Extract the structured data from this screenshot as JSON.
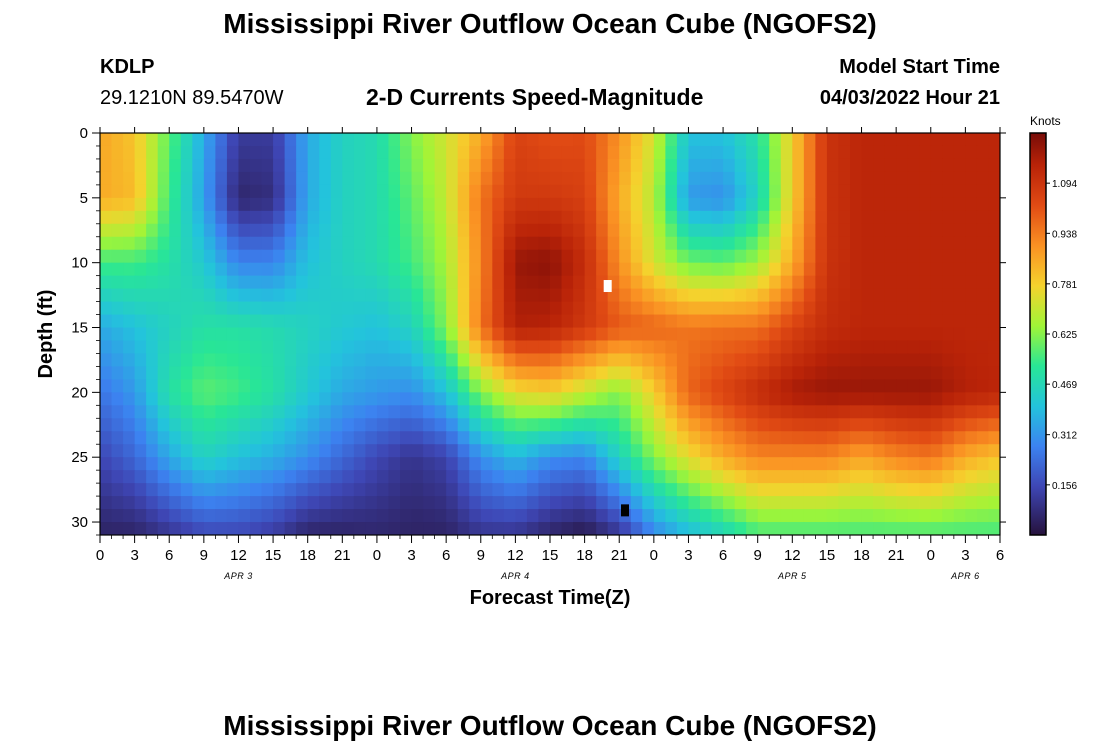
{
  "page": {
    "title": "Mississippi River Outflow Ocean Cube (NGOFS2)",
    "title_repeat": "Mississippi River Outflow Ocean Cube (NGOFS2)"
  },
  "header": {
    "station": "KDLP",
    "coords": "29.1210N  89.5470W",
    "subtitle": "2-D Currents Speed-Magnitude",
    "model_label": "Model Start Time",
    "model_time": "04/03/2022 Hour 21"
  },
  "chart_data": {
    "type": "heatmap",
    "title": "2-D Currents Speed-Magnitude",
    "xlabel": "Forecast Time(Z)",
    "ylabel": "Depth (ft)",
    "x_ticks": [
      "0",
      "3",
      "6",
      "9",
      "12",
      "15",
      "18",
      "21",
      "0",
      "3",
      "6",
      "9",
      "12",
      "15",
      "18",
      "21",
      "0",
      "3",
      "6",
      "9",
      "12",
      "15",
      "18",
      "21",
      "0",
      "3",
      "6"
    ],
    "x_range_hours": [
      0,
      78
    ],
    "date_labels": [
      {
        "label": "APR 3",
        "hour": 12
      },
      {
        "label": "APR 4",
        "hour": 36
      },
      {
        "label": "APR 5",
        "hour": 60
      },
      {
        "label": "APR 6",
        "hour": 75
      }
    ],
    "y_ticks": [
      0,
      5,
      10,
      15,
      20,
      25,
      30
    ],
    "y_range_ft": [
      0,
      31
    ],
    "y_inverted": true,
    "colorbar": {
      "unit": "Knots",
      "ticks": [
        "1.094",
        "0.938",
        "0.781",
        "0.625",
        "0.469",
        "0.312",
        "0.156"
      ],
      "range": [
        0.0,
        1.25
      ]
    },
    "x_cells": [
      0,
      3,
      6,
      9,
      12,
      15,
      18,
      21,
      24,
      27,
      30,
      33,
      36,
      39,
      42,
      45,
      48,
      51,
      54,
      57,
      60,
      63,
      66,
      69,
      72,
      75,
      78
    ],
    "depth_cells": [
      0,
      5,
      10,
      15,
      20,
      25,
      31
    ],
    "speed_knots": [
      [
        0.86,
        0.8,
        0.58,
        0.35,
        0.12,
        0.12,
        0.35,
        0.45,
        0.48,
        0.62,
        0.72,
        0.85,
        1.05,
        1.02,
        1.03,
        0.9,
        0.72,
        0.4,
        0.4,
        0.5,
        0.78,
        1.1,
        1.14,
        1.14,
        1.14,
        1.14,
        1.14
      ],
      [
        0.85,
        0.82,
        0.55,
        0.33,
        0.06,
        0.08,
        0.35,
        0.45,
        0.48,
        0.58,
        0.7,
        0.95,
        1.08,
        1.08,
        1.06,
        0.85,
        0.68,
        0.32,
        0.3,
        0.45,
        0.78,
        1.1,
        1.14,
        1.14,
        1.14,
        1.14,
        1.14
      ],
      [
        0.55,
        0.55,
        0.5,
        0.42,
        0.28,
        0.28,
        0.4,
        0.45,
        0.48,
        0.55,
        0.66,
        0.92,
        1.2,
        1.22,
        1.12,
        0.9,
        0.72,
        0.6,
        0.58,
        0.65,
        0.85,
        1.1,
        1.14,
        1.14,
        1.14,
        1.14,
        1.14
      ],
      [
        0.35,
        0.4,
        0.45,
        0.5,
        0.5,
        0.48,
        0.45,
        0.42,
        0.4,
        0.45,
        0.62,
        0.95,
        1.16,
        1.15,
        1.08,
        1.0,
        0.98,
        0.95,
        0.96,
        0.96,
        1.05,
        1.12,
        1.14,
        1.14,
        1.14,
        1.14,
        1.14
      ],
      [
        0.25,
        0.32,
        0.5,
        0.58,
        0.55,
        0.5,
        0.42,
        0.35,
        0.32,
        0.3,
        0.4,
        0.62,
        0.75,
        0.78,
        0.7,
        0.62,
        0.78,
        0.98,
        1.05,
        1.12,
        1.18,
        1.2,
        1.2,
        1.2,
        1.2,
        1.16,
        1.14
      ],
      [
        0.15,
        0.22,
        0.35,
        0.45,
        0.4,
        0.36,
        0.3,
        0.22,
        0.15,
        0.1,
        0.14,
        0.3,
        0.38,
        0.3,
        0.28,
        0.45,
        0.62,
        0.75,
        0.85,
        0.92,
        0.92,
        0.92,
        0.86,
        0.92,
        0.95,
        0.85,
        0.8
      ],
      [
        0.05,
        0.05,
        0.1,
        0.15,
        0.15,
        0.12,
        0.05,
        0.05,
        0.06,
        0.05,
        0.05,
        0.1,
        0.1,
        0.05,
        0.02,
        0.1,
        0.28,
        0.38,
        0.45,
        0.55,
        0.55,
        0.55,
        0.55,
        0.55,
        0.55,
        0.55,
        0.55
      ]
    ],
    "markers": [
      {
        "kind": "max",
        "color": "#ffffff",
        "hour": 44,
        "depth": 11.8
      },
      {
        "kind": "min",
        "color": "#000000",
        "hour": 45.5,
        "depth": 29.1
      }
    ]
  }
}
